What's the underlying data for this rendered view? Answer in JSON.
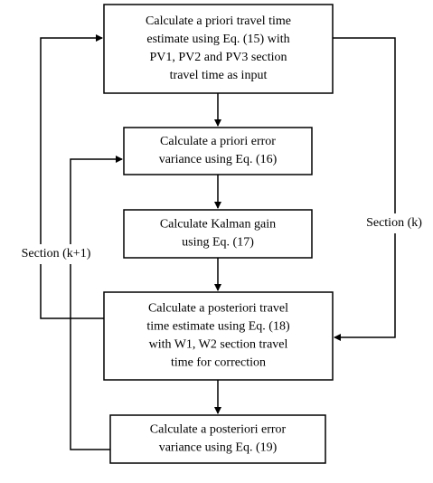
{
  "boxes": [
    {
      "lines": [
        "Calculate a priori travel time",
        "estimate using Eq. (15) with",
        "PV1, PV2 and PV3 section",
        "travel time as input"
      ]
    },
    {
      "lines": [
        "Calculate a priori error",
        "variance using Eq. (16)"
      ]
    },
    {
      "lines": [
        "Calculate Kalman gain",
        "using Eq. (17)"
      ]
    },
    {
      "lines": [
        "Calculate a posteriori travel",
        "time estimate using Eq. (18)",
        "with W1, W2 section travel",
        "time for correction"
      ]
    },
    {
      "lines": [
        "Calculate a posteriori error",
        "variance using Eq. (19)"
      ]
    }
  ],
  "labels": {
    "left": "Section (k+1)",
    "right": "Section (k)"
  }
}
